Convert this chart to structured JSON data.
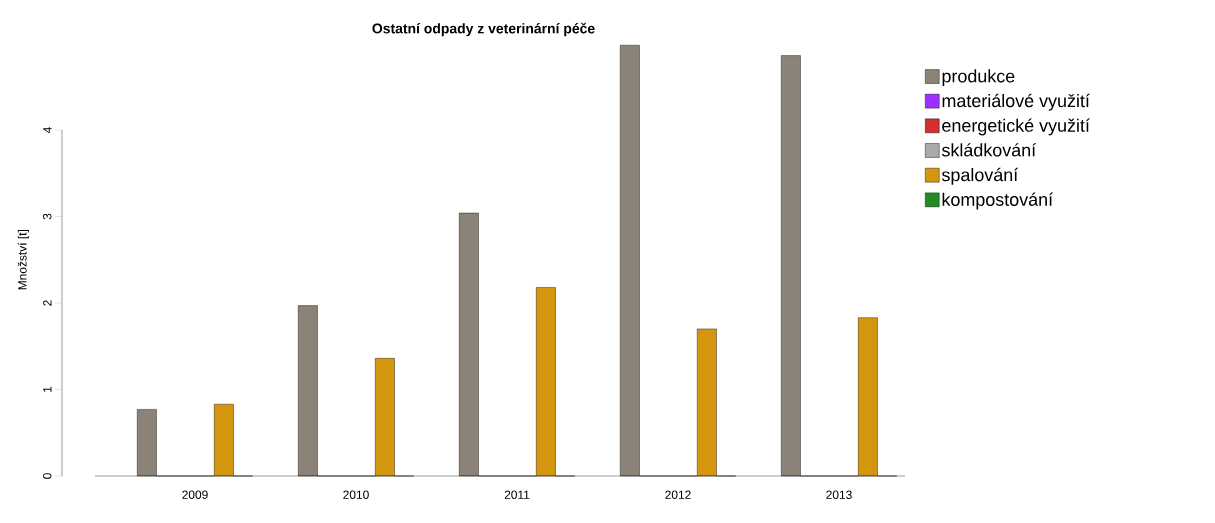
{
  "chart_data": {
    "type": "bar",
    "title": "Ostatní odpady z veterinární péče",
    "ylabel": "Množství [t]",
    "categories": [
      "2009",
      "2010",
      "2011",
      "2012",
      "2013"
    ],
    "series": [
      {
        "name": "produkce",
        "color": "#8b8378",
        "values": [
          0.77,
          1.97,
          3.04,
          4.98,
          4.86
        ]
      },
      {
        "name": "materiálové využití",
        "color": "#9b30ff",
        "values": [
          0,
          0,
          0,
          0,
          0
        ]
      },
      {
        "name": "energetické využití",
        "color": "#d32f2f",
        "values": [
          0,
          0,
          0,
          0,
          0
        ]
      },
      {
        "name": "skládkování",
        "color": "#aaaaaa",
        "values": [
          0,
          0,
          0,
          0,
          0
        ]
      },
      {
        "name": "spalování",
        "color": "#d4950f",
        "values": [
          0.83,
          1.36,
          2.18,
          1.7,
          1.83
        ]
      },
      {
        "name": "kompostování",
        "color": "#228b22",
        "values": [
          0,
          0,
          0,
          0,
          0
        ]
      }
    ],
    "ylim": [
      0,
      5
    ],
    "yticks": [
      0,
      1,
      2,
      3,
      4
    ],
    "legend": "right"
  }
}
